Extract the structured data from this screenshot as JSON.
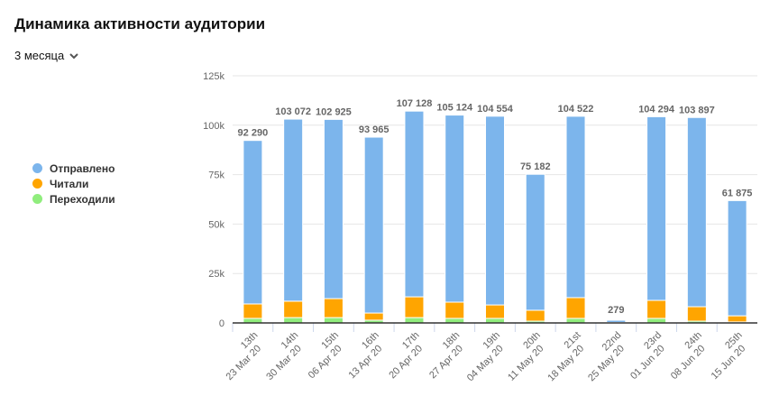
{
  "header": {
    "title": "Динамика активности аудитории",
    "period": "3 месяца"
  },
  "chart_data": {
    "type": "bar",
    "stacked": true,
    "title": "Динамика активности аудитории",
    "ylim": [
      0,
      125000
    ],
    "yticks": [
      "0",
      "25k",
      "50k",
      "75k",
      "100k",
      "125k"
    ],
    "ytick_values": [
      0,
      25000,
      50000,
      75000,
      100000,
      125000
    ],
    "categories": [
      [
        "13th",
        "23 Mar 20"
      ],
      [
        "14th",
        "30 Mar 20"
      ],
      [
        "15th",
        "06 Apr 20"
      ],
      [
        "16th",
        "13 Apr 20"
      ],
      [
        "17th",
        "20 Apr 20"
      ],
      [
        "18th",
        "27 Apr 20"
      ],
      [
        "19th",
        "04 May 20"
      ],
      [
        "20th",
        "11 May 20"
      ],
      [
        "21st",
        "18 May 20"
      ],
      [
        "22nd",
        "25 May 20"
      ],
      [
        "23rd",
        "01 Jun 20"
      ],
      [
        "24th",
        "08 Jun 20"
      ],
      [
        "25th",
        "15 Jun 20"
      ]
    ],
    "totals": [
      92290,
      103072,
      102925,
      93965,
      107128,
      105124,
      104554,
      75182,
      104522,
      279,
      104294,
      103897,
      61875
    ],
    "total_labels": [
      "92 290",
      "103 072",
      "102 925",
      "93 965",
      "107 128",
      "105 124",
      "104 554",
      "75 182",
      "104 522",
      "279",
      "104 294",
      "103 897",
      "61 875"
    ],
    "series": [
      {
        "name": "Переходили",
        "color": "#90ed7d",
        "values": [
          2300,
          2700,
          2700,
          1400,
          2700,
          2300,
          2300,
          900,
          2300,
          20,
          2300,
          900,
          500
        ]
      },
      {
        "name": "Читали",
        "color": "#ffa500",
        "values": [
          7300,
          8300,
          9600,
          3600,
          10500,
          8200,
          6800,
          5500,
          10500,
          200,
          9100,
          7300,
          3100
        ]
      },
      {
        "name": "Отправлено",
        "color": "#7cb5ec",
        "values": [
          82690,
          92072,
          90625,
          88965,
          93928,
          94624,
          95454,
          68782,
          91722,
          59,
          92894,
          95697,
          58275
        ]
      }
    ],
    "legend_position": "left"
  }
}
